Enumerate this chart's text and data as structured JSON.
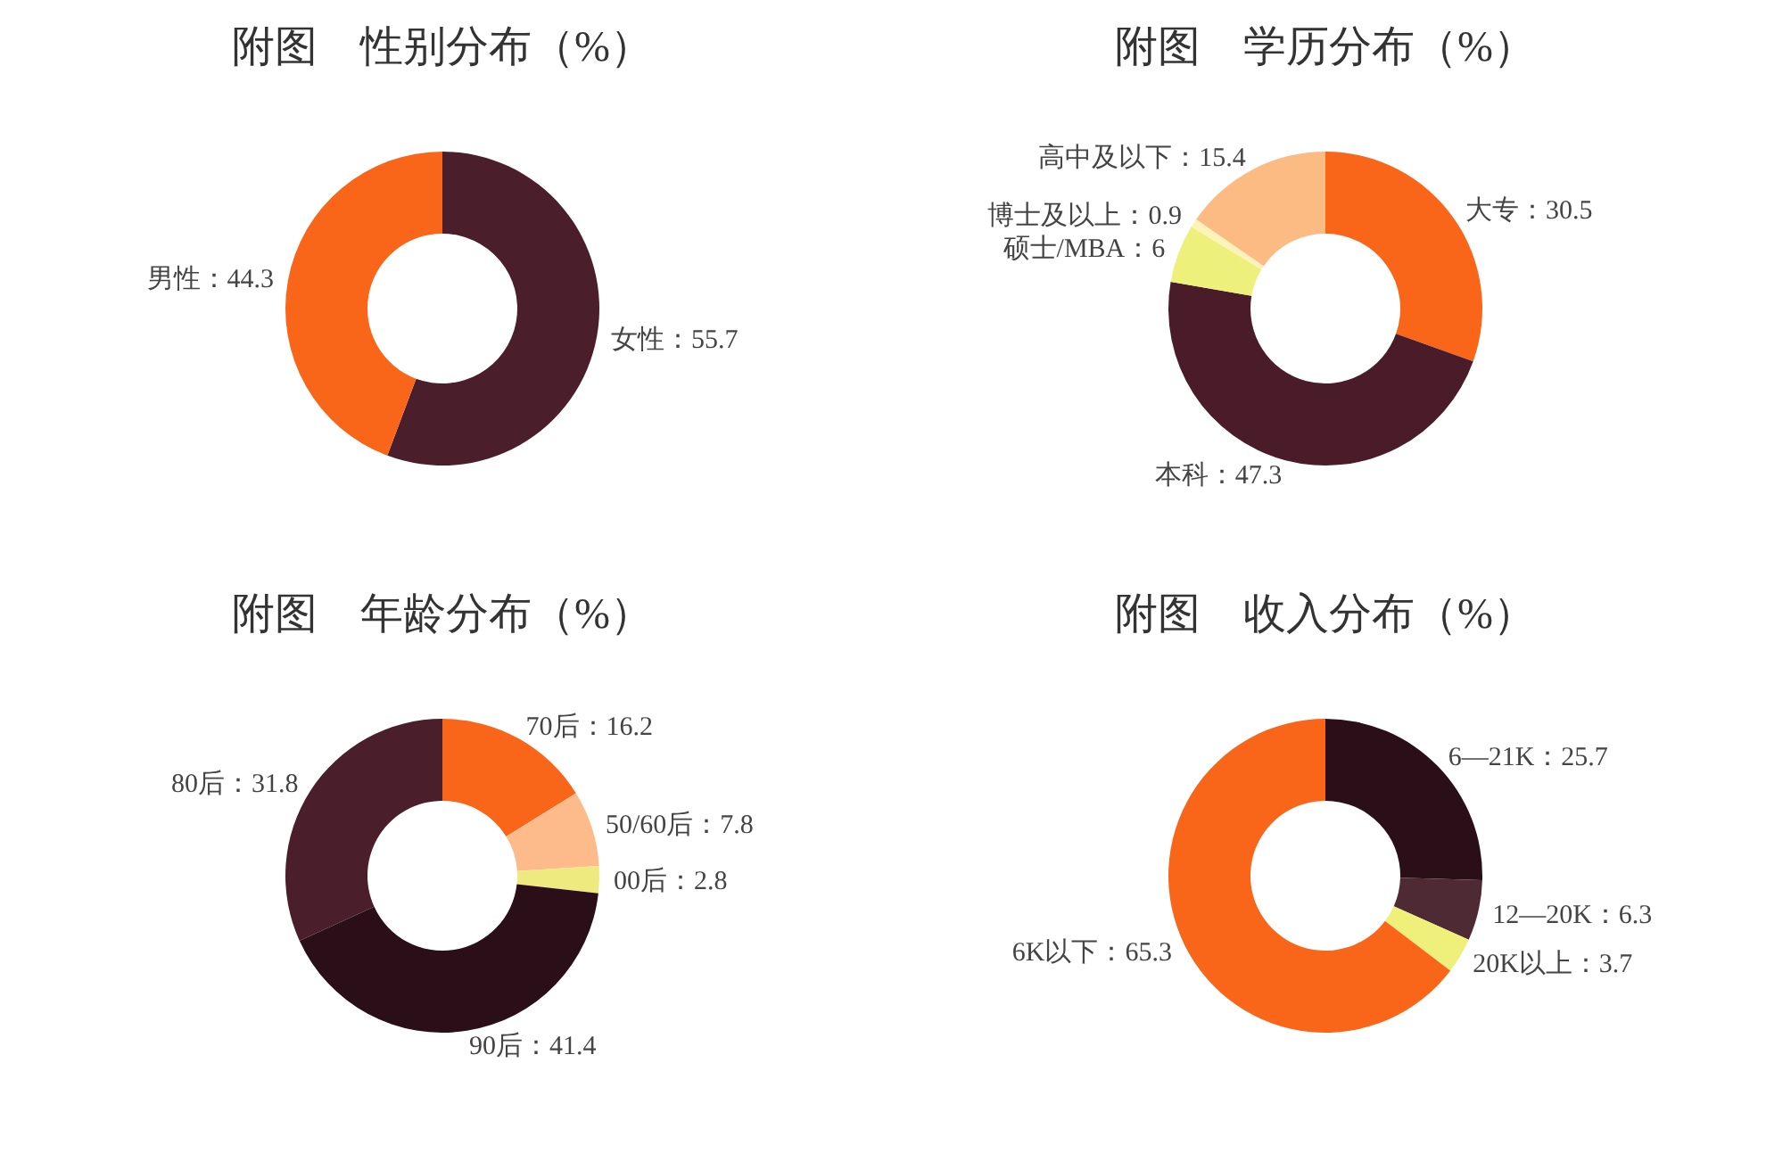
{
  "chart_data": [
    {
      "type": "donut",
      "title": "附图　性别分布（%）",
      "categories": [
        "女性",
        "男性"
      ],
      "values": [
        55.7,
        44.3
      ],
      "colors": [
        "#4a1e2a",
        "#f9661a"
      ],
      "value_labels": [
        "：55.7",
        "：44.3"
      ]
    },
    {
      "type": "donut",
      "title": "附图　学历分布（%）",
      "categories": [
        "大专",
        "本科",
        "硕士/MBA",
        "博士及以上",
        "高中及以下"
      ],
      "values": [
        30.5,
        47.3,
        6,
        0.9,
        15.4
      ],
      "colors": [
        "#f9661a",
        "#4a1b28",
        "#eef07c",
        "#fbf3b8",
        "#fdbb84"
      ],
      "value_labels": [
        "：30.5",
        "：47.3",
        "：6",
        "：0.9",
        "：15.4"
      ]
    },
    {
      "type": "donut",
      "title": "附图　年龄分布（%）",
      "categories": [
        "70后",
        "50/60后",
        "00后",
        "90后",
        "80后"
      ],
      "values": [
        16.2,
        7.8,
        2.8,
        41.4,
        31.8
      ],
      "colors": [
        "#f9661a",
        "#fdbb8c",
        "#eeea80",
        "#2a0f18",
        "#4a1e2a"
      ],
      "value_labels": [
        "：16.2",
        "：7.8",
        "：2.8",
        "：41.4",
        "：31.8"
      ]
    },
    {
      "type": "donut",
      "title": "附图　收入分布（%）",
      "categories": [
        "6—21K",
        "12—20K",
        "20K以上",
        "6K以下"
      ],
      "values": [
        25.7,
        6.3,
        3.7,
        65.3
      ],
      "colors": [
        "#2a0f18",
        "#4e2a35",
        "#eef07a",
        "#f9661a"
      ],
      "value_labels": [
        "：25.7",
        "：6.3",
        "：3.7",
        "：65.3"
      ]
    }
  ]
}
